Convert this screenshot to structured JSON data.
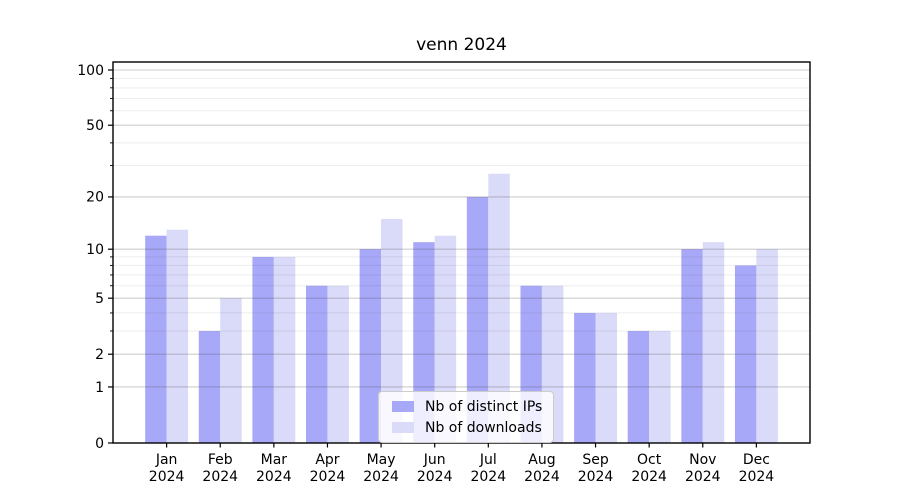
{
  "chart_data": {
    "type": "bar",
    "title": "venn 2024",
    "categories": [
      "Jan",
      "Feb",
      "Mar",
      "Apr",
      "May",
      "Jun",
      "Jul",
      "Aug",
      "Sep",
      "Oct",
      "Nov",
      "Dec"
    ],
    "category_year": "2024",
    "series": [
      {
        "name": "Nb of distinct IPs",
        "color": "#a8a8f8",
        "values": [
          12,
          3,
          9,
          6,
          10,
          11,
          20,
          6,
          4,
          3,
          10,
          8
        ]
      },
      {
        "name": "Nb of downloads",
        "color": "#dadaf9",
        "values": [
          13,
          5,
          9,
          6,
          15,
          12,
          27,
          6,
          4,
          3,
          11,
          10
        ]
      }
    ],
    "xlabel": "",
    "ylabel": "",
    "yscale": "log1p",
    "ylim": [
      0,
      110
    ],
    "y_axis": {
      "major_ticks": [
        0,
        1,
        2,
        5,
        10,
        20,
        50,
        100
      ],
      "minor_ticks": [
        3,
        4,
        6,
        7,
        8,
        9,
        30,
        40,
        60,
        70,
        80,
        90
      ]
    },
    "grid": true,
    "legend": {
      "position": "lower center",
      "entries": [
        "Nb of distinct IPs",
        "Nb of downloads"
      ]
    }
  },
  "colors": {
    "spine": "#000000",
    "major_grid": "rgba(60,60,60,0.25)",
    "minor_grid": "rgba(60,60,60,0.09)",
    "background": "#ffffff"
  }
}
